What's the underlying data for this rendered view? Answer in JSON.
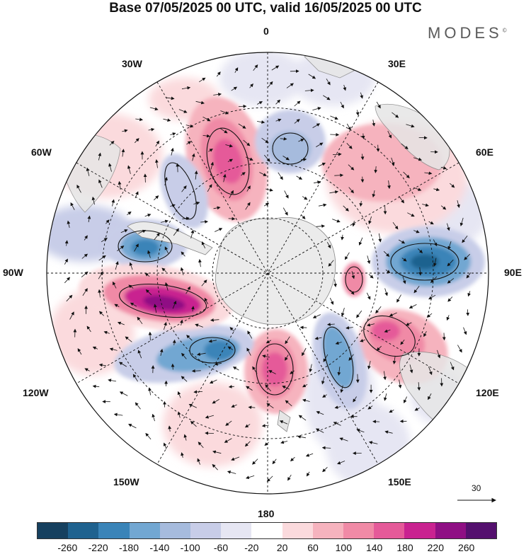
{
  "title": "Base 07/05/2025 00 UTC, valid 16/05/2025 00 UTC",
  "brand": "MODES",
  "brand_mark": "©",
  "lon_labels": {
    "n0": "0",
    "e30": "30E",
    "e60": "60E",
    "e90": "90E",
    "e120": "120E",
    "e150": "150E",
    "s180": "180",
    "w150": "150W",
    "w120": "120W",
    "w90": "90W",
    "w60": "60W",
    "w30": "30W"
  },
  "reference_vector": "30",
  "colorbar": {
    "colors": [
      "#16405f",
      "#1f628f",
      "#3a84b8",
      "#72a7d2",
      "#a6bbdd",
      "#c8cde8",
      "#e6e6f3",
      "#ffffff",
      "#fbdadd",
      "#f6b3be",
      "#f08aa6",
      "#e55a99",
      "#c92290",
      "#8f0f84",
      "#54106e"
    ],
    "labels": [
      "-260",
      "-220",
      "-180",
      "-140",
      "-100",
      "-60",
      "-20",
      "20",
      "60",
      "100",
      "140",
      "180",
      "220",
      "260"
    ]
  },
  "anomalies": [
    {
      "name": "anom-pos-south-atlantic",
      "color": "#e55a99",
      "level": 180
    },
    {
      "name": "anom-neg-weddell",
      "color": "#3a84b8",
      "level": -180
    },
    {
      "name": "anom-pos-south-africa",
      "color": "#f6b3be",
      "level": 100
    },
    {
      "name": "anom-neg-indian-90e",
      "color": "#1f628f",
      "level": -220
    },
    {
      "name": "anom-pos-west-australia",
      "color": "#e55a99",
      "level": 180
    },
    {
      "name": "anom-pos-tasman",
      "color": "#e55a99",
      "level": 180
    },
    {
      "name": "anom-neg-ross",
      "color": "#3a84b8",
      "level": -180
    },
    {
      "name": "anom-pos-amundsen",
      "color": "#c92290",
      "level": 220
    },
    {
      "name": "anom-neg-bellingshausen",
      "color": "#3a84b8",
      "level": -180
    },
    {
      "name": "anom-neg-pacific-120w",
      "color": "#3a84b8",
      "level": -180
    }
  ]
}
